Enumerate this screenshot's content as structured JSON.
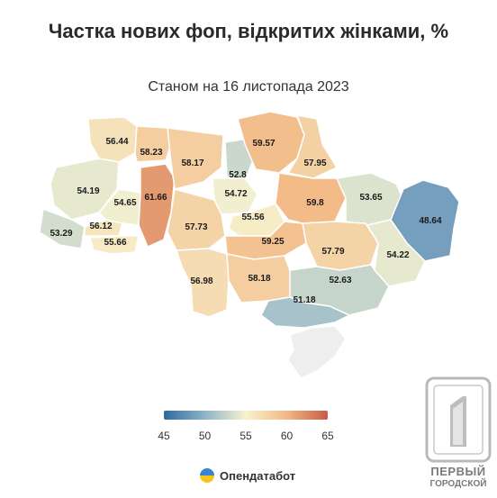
{
  "title": "Частка нових фоп, відкритих жінками, %",
  "subtitle": "Станом на 16 листопада 2023",
  "legend": {
    "ticks": [
      "45",
      "50",
      "55",
      "60",
      "65"
    ],
    "min": 45,
    "max": 65,
    "colors": [
      "#2f6a9e",
      "#8fb3c9",
      "#f7f3cf",
      "#f2b985",
      "#c85b46"
    ]
  },
  "source": {
    "label": "Опендатабот"
  },
  "watermark": {
    "line1": "ПЕРВЫЙ",
    "line2": "ГОРОДСКОЙ"
  },
  "chart_data": {
    "type": "map",
    "regions": [
      {
        "value": 56.44
      },
      {
        "value": 58.23
      },
      {
        "value": 54.19
      },
      {
        "value": 61.66
      },
      {
        "value": 54.65
      },
      {
        "value": 53.29
      },
      {
        "value": 56.12
      },
      {
        "value": 55.66
      },
      {
        "value": 58.17
      },
      {
        "value": 52.8
      },
      {
        "value": 54.72
      },
      {
        "value": 57.73
      },
      {
        "value": 55.56
      },
      {
        "value": 59.57
      },
      {
        "value": 57.95
      },
      {
        "value": 59.8
      },
      {
        "value": 53.65
      },
      {
        "value": 48.64
      },
      {
        "value": 59.25
      },
      {
        "value": 57.79
      },
      {
        "value": 54.22
      },
      {
        "value": 56.98
      },
      {
        "value": 58.18
      },
      {
        "value": 52.63
      },
      {
        "value": 51.18
      },
      {
        "value": null
      }
    ]
  }
}
